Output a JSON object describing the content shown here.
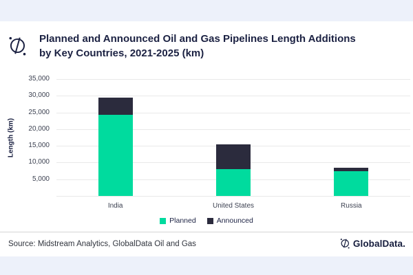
{
  "header": {
    "title_lines": [
      "Planned and Announced Oil and Gas Pipelines Length Additions",
      "by Key Countries, 2021-2025 (km)"
    ],
    "logo_icon": "globaldata-compass-icon"
  },
  "chart_data": {
    "type": "bar",
    "stacked": true,
    "title": "Planned and Announced Oil and Gas Pipelines Length Additions by Key Countries, 2021-2025 (km)",
    "categories": [
      "India",
      "United States",
      "Russia"
    ],
    "series": [
      {
        "name": "Planned",
        "color": "#00db9e",
        "values": [
          24200,
          8100,
          7500
        ]
      },
      {
        "name": "Announced",
        "color": "#2b2b3d",
        "values": [
          5200,
          7400,
          900
        ]
      }
    ],
    "totals": [
      29400,
      15500,
      8400
    ],
    "xlabel": "",
    "ylabel": "Length (km)",
    "ylim": [
      0,
      35000
    ],
    "yticks": [
      {
        "value": 35000,
        "label": "35,000"
      },
      {
        "value": 30000,
        "label": "30,000"
      },
      {
        "value": 25000,
        "label": "25,000"
      },
      {
        "value": 20000,
        "label": "20,000"
      },
      {
        "value": 15000,
        "label": "15,000"
      },
      {
        "value": 10000,
        "label": "10,000"
      },
      {
        "value": 5000,
        "label": "5,000"
      },
      {
        "value": 0,
        "label": ""
      }
    ],
    "grid": true,
    "legend_position": "bottom"
  },
  "footer": {
    "source": "Source: Midstream Analytics, GlobalData Oil and Gas",
    "brand": "GlobalData."
  },
  "colors": {
    "band": "#edf1fa",
    "title_text": "#1b2142",
    "axis_text": "#3a3f4f",
    "planned_green": "#00db9e",
    "announced_navy": "#2b2b3d",
    "gridline": "#e9e9e9"
  }
}
